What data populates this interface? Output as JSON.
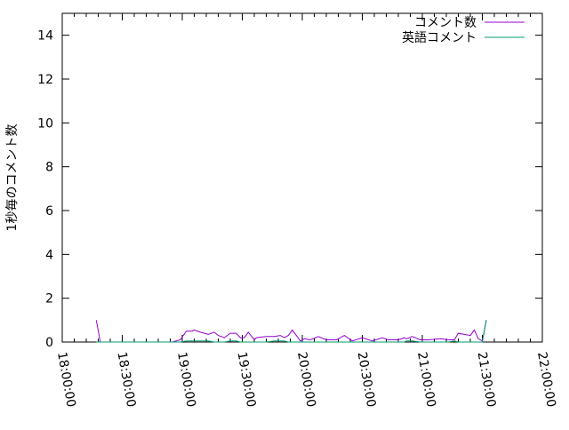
{
  "chart_data": {
    "type": "line",
    "title": "",
    "xlabel": "",
    "ylabel": "1秒毎のコメント数",
    "xlim": [
      "18:00:00",
      "22:00:00"
    ],
    "ylim": [
      0,
      15
    ],
    "x_ticks": [
      "18:00:00",
      "18:30:00",
      "19:00:00",
      "19:30:00",
      "20:00:00",
      "20:30:00",
      "21:00:00",
      "21:30:00",
      "22:00:00"
    ],
    "y_ticks": [
      "0",
      "2",
      "4",
      "6",
      "8",
      "10",
      "12",
      "14"
    ],
    "grid": false,
    "legend": "top-right",
    "x": [
      "18:17",
      "18:19",
      "18:55",
      "18:59",
      "19:02",
      "19:05",
      "19:06",
      "19:09",
      "19:13",
      "19:16",
      "19:18",
      "19:21",
      "19:24",
      "19:27",
      "19:29",
      "19:31",
      "19:33",
      "19:36",
      "19:37",
      "19:42",
      "19:46",
      "19:49",
      "19:51",
      "19:53",
      "19:55",
      "19:59",
      "20:01",
      "20:04",
      "20:08",
      "20:12",
      "20:17",
      "20:21",
      "20:25",
      "20:30",
      "20:35",
      "20:40",
      "20:43",
      "20:48",
      "20:51",
      "20:52",
      "20:55",
      "20:59",
      "21:03",
      "21:09",
      "21:13",
      "21:16",
      "21:18",
      "21:21",
      "21:24",
      "21:26",
      "21:28",
      "21:30",
      "21:32"
    ],
    "series": [
      {
        "name": "コメント数",
        "color": "#9400d3",
        "values": [
          1.0,
          0,
          0,
          0.1,
          0.5,
          0.5,
          0.55,
          0.45,
          0.35,
          0.45,
          0.3,
          0.2,
          0.4,
          0.4,
          0.2,
          0.2,
          0.45,
          0.1,
          0.2,
          0.25,
          0.25,
          0.3,
          0.2,
          0.3,
          0.55,
          0.05,
          0.15,
          0.1,
          0.25,
          0.1,
          0.1,
          0.3,
          0.05,
          0.2,
          0.05,
          0.2,
          0.1,
          0.1,
          0.2,
          0.15,
          0.25,
          0.1,
          0.1,
          0.15,
          0.1,
          0.1,
          0.4,
          0.35,
          0.3,
          0.55,
          0.15,
          0.05,
          1.0
        ]
      },
      {
        "name": "英語コメント",
        "color": "#009e73",
        "values": [
          0,
          0,
          0,
          0,
          0.05,
          0.05,
          0.05,
          0.05,
          0.05,
          0,
          0,
          0,
          0.05,
          0.05,
          0,
          0,
          0,
          0,
          0,
          0,
          0.05,
          0.05,
          0.05,
          0,
          0,
          0,
          0,
          0,
          0,
          0,
          0,
          0,
          0,
          0,
          0,
          0,
          0,
          0,
          0,
          0.05,
          0.05,
          0,
          0,
          0,
          0,
          0.05,
          0,
          0,
          0,
          0,
          0,
          0,
          1.0
        ]
      }
    ]
  }
}
